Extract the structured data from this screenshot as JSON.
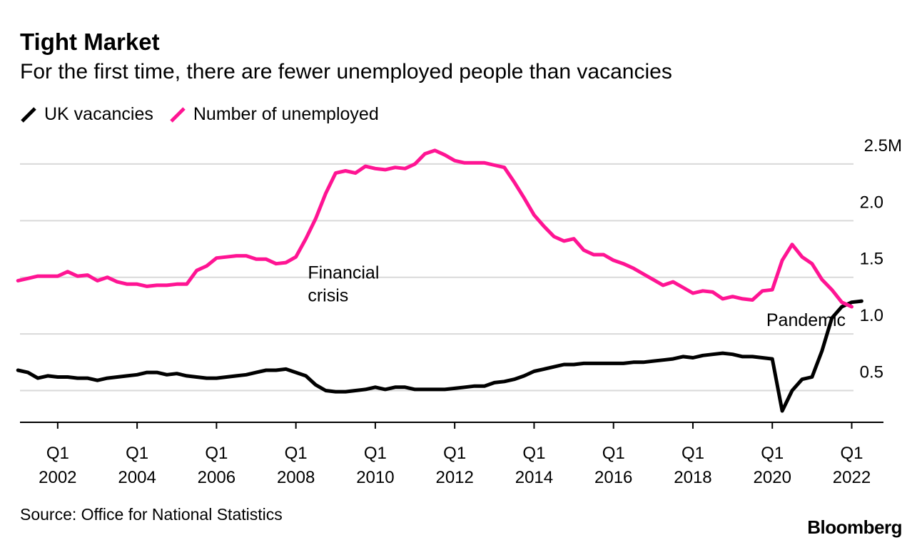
{
  "title": "Tight Market",
  "subtitle": "For the first time, there are fewer unemployed people than vacancies",
  "legend": [
    {
      "label": "UK vacancies",
      "color": "#000000",
      "icon": "slash-line-icon"
    },
    {
      "label": "Number of unemployed",
      "color": "#ff1493",
      "icon": "slash-line-icon"
    }
  ],
  "source": "Source: Office for National Statistics",
  "brand": "Bloomberg",
  "chart_data": {
    "type": "line",
    "y_unit_label": "2.5M",
    "ylim": [
      0.22,
      2.72
    ],
    "y_ticks": [
      {
        "value": 0.5,
        "label": "0.5"
      },
      {
        "value": 1.0,
        "label": "1.0"
      },
      {
        "value": 1.5,
        "label": "1.5"
      },
      {
        "value": 2.0,
        "label": "2.0"
      },
      {
        "value": 2.5,
        "label": "2.5M"
      }
    ],
    "grid": true,
    "x_ticks": [
      {
        "x": 2002.0,
        "q": "Q1",
        "year": "2002"
      },
      {
        "x": 2004.0,
        "q": "Q1",
        "year": "2004"
      },
      {
        "x": 2006.0,
        "q": "Q1",
        "year": "2006"
      },
      {
        "x": 2008.0,
        "q": "Q1",
        "year": "2008"
      },
      {
        "x": 2010.0,
        "q": "Q1",
        "year": "2010"
      },
      {
        "x": 2012.0,
        "q": "Q1",
        "year": "2012"
      },
      {
        "x": 2014.0,
        "q": "Q1",
        "year": "2014"
      },
      {
        "x": 2016.0,
        "q": "Q1",
        "year": "2016"
      },
      {
        "x": 2018.0,
        "q": "Q1",
        "year": "2018"
      },
      {
        "x": 2020.0,
        "q": "Q1",
        "year": "2020"
      },
      {
        "x": 2022.0,
        "q": "Q1",
        "year": "2022"
      }
    ],
    "xlim": [
      2001.05,
      2022.8
    ],
    "annotations": [
      {
        "lines": [
          "Financial",
          "crisis"
        ],
        "x": 2008.3,
        "y": 1.49
      },
      {
        "lines": [
          "Pandemic"
        ],
        "x": 2019.85,
        "y": 1.07
      }
    ],
    "series": [
      {
        "name": "UK vacancies",
        "color": "#000000",
        "x": [
          2001.0,
          2001.25,
          2001.5,
          2001.75,
          2002.0,
          2002.25,
          2002.5,
          2002.75,
          2003.0,
          2003.25,
          2003.5,
          2003.75,
          2004.0,
          2004.25,
          2004.5,
          2004.75,
          2005.0,
          2005.25,
          2005.5,
          2005.75,
          2006.0,
          2006.25,
          2006.5,
          2006.75,
          2007.0,
          2007.25,
          2007.5,
          2007.75,
          2008.0,
          2008.25,
          2008.5,
          2008.75,
          2009.0,
          2009.25,
          2009.5,
          2009.75,
          2010.0,
          2010.25,
          2010.5,
          2010.75,
          2011.0,
          2011.25,
          2011.5,
          2011.75,
          2012.0,
          2012.25,
          2012.5,
          2012.75,
          2013.0,
          2013.25,
          2013.5,
          2013.75,
          2014.0,
          2014.25,
          2014.5,
          2014.75,
          2015.0,
          2015.25,
          2015.5,
          2015.75,
          2016.0,
          2016.25,
          2016.5,
          2016.75,
          2017.0,
          2017.25,
          2017.5,
          2017.75,
          2018.0,
          2018.25,
          2018.5,
          2018.75,
          2019.0,
          2019.25,
          2019.5,
          2019.75,
          2020.0,
          2020.25,
          2020.5,
          2020.75,
          2021.0,
          2021.25,
          2021.5,
          2021.75,
          2022.0,
          2022.25
        ],
        "values": [
          0.68,
          0.66,
          0.61,
          0.63,
          0.62,
          0.62,
          0.61,
          0.61,
          0.59,
          0.61,
          0.62,
          0.63,
          0.64,
          0.66,
          0.66,
          0.64,
          0.65,
          0.63,
          0.62,
          0.61,
          0.61,
          0.62,
          0.63,
          0.64,
          0.66,
          0.68,
          0.68,
          0.69,
          0.66,
          0.63,
          0.55,
          0.5,
          0.49,
          0.49,
          0.5,
          0.51,
          0.53,
          0.51,
          0.53,
          0.53,
          0.51,
          0.51,
          0.51,
          0.51,
          0.52,
          0.53,
          0.54,
          0.54,
          0.57,
          0.58,
          0.6,
          0.63,
          0.67,
          0.69,
          0.71,
          0.73,
          0.73,
          0.74,
          0.74,
          0.74,
          0.74,
          0.74,
          0.75,
          0.75,
          0.76,
          0.77,
          0.78,
          0.8,
          0.79,
          0.81,
          0.82,
          0.83,
          0.82,
          0.8,
          0.8,
          0.79,
          0.78,
          0.32,
          0.5,
          0.6,
          0.62,
          0.85,
          1.14,
          1.24,
          1.28,
          1.29
        ]
      },
      {
        "name": "Number of unemployed",
        "color": "#ff1493",
        "x": [
          2001.0,
          2001.25,
          2001.5,
          2001.75,
          2002.0,
          2002.25,
          2002.5,
          2002.75,
          2003.0,
          2003.25,
          2003.5,
          2003.75,
          2004.0,
          2004.25,
          2004.5,
          2004.75,
          2005.0,
          2005.25,
          2005.5,
          2005.75,
          2006.0,
          2006.25,
          2006.5,
          2006.75,
          2007.0,
          2007.25,
          2007.5,
          2007.75,
          2008.0,
          2008.25,
          2008.5,
          2008.75,
          2009.0,
          2009.25,
          2009.5,
          2009.75,
          2010.0,
          2010.25,
          2010.5,
          2010.75,
          2011.0,
          2011.25,
          2011.5,
          2011.75,
          2012.0,
          2012.25,
          2012.5,
          2012.75,
          2013.0,
          2013.25,
          2013.5,
          2013.75,
          2014.0,
          2014.25,
          2014.5,
          2014.75,
          2015.0,
          2015.25,
          2015.5,
          2015.75,
          2016.0,
          2016.25,
          2016.5,
          2016.75,
          2017.0,
          2017.25,
          2017.5,
          2017.75,
          2018.0,
          2018.25,
          2018.5,
          2018.75,
          2019.0,
          2019.25,
          2019.5,
          2019.75,
          2020.0,
          2020.25,
          2020.5,
          2020.75,
          2021.0,
          2021.25,
          2021.5,
          2021.75,
          2022.0
        ],
        "values": [
          1.47,
          1.49,
          1.51,
          1.51,
          1.51,
          1.55,
          1.51,
          1.52,
          1.47,
          1.5,
          1.46,
          1.44,
          1.44,
          1.42,
          1.43,
          1.43,
          1.44,
          1.44,
          1.56,
          1.6,
          1.67,
          1.68,
          1.69,
          1.69,
          1.66,
          1.66,
          1.62,
          1.63,
          1.68,
          1.84,
          2.02,
          2.24,
          2.42,
          2.44,
          2.42,
          2.48,
          2.46,
          2.45,
          2.47,
          2.46,
          2.5,
          2.59,
          2.62,
          2.58,
          2.53,
          2.51,
          2.51,
          2.51,
          2.49,
          2.47,
          2.34,
          2.2,
          2.05,
          1.95,
          1.86,
          1.82,
          1.84,
          1.74,
          1.7,
          1.7,
          1.65,
          1.62,
          1.58,
          1.53,
          1.48,
          1.43,
          1.46,
          1.41,
          1.36,
          1.38,
          1.37,
          1.31,
          1.33,
          1.31,
          1.3,
          1.38,
          1.39,
          1.65,
          1.79,
          1.68,
          1.62,
          1.48,
          1.39,
          1.28,
          1.24
        ]
      }
    ]
  }
}
